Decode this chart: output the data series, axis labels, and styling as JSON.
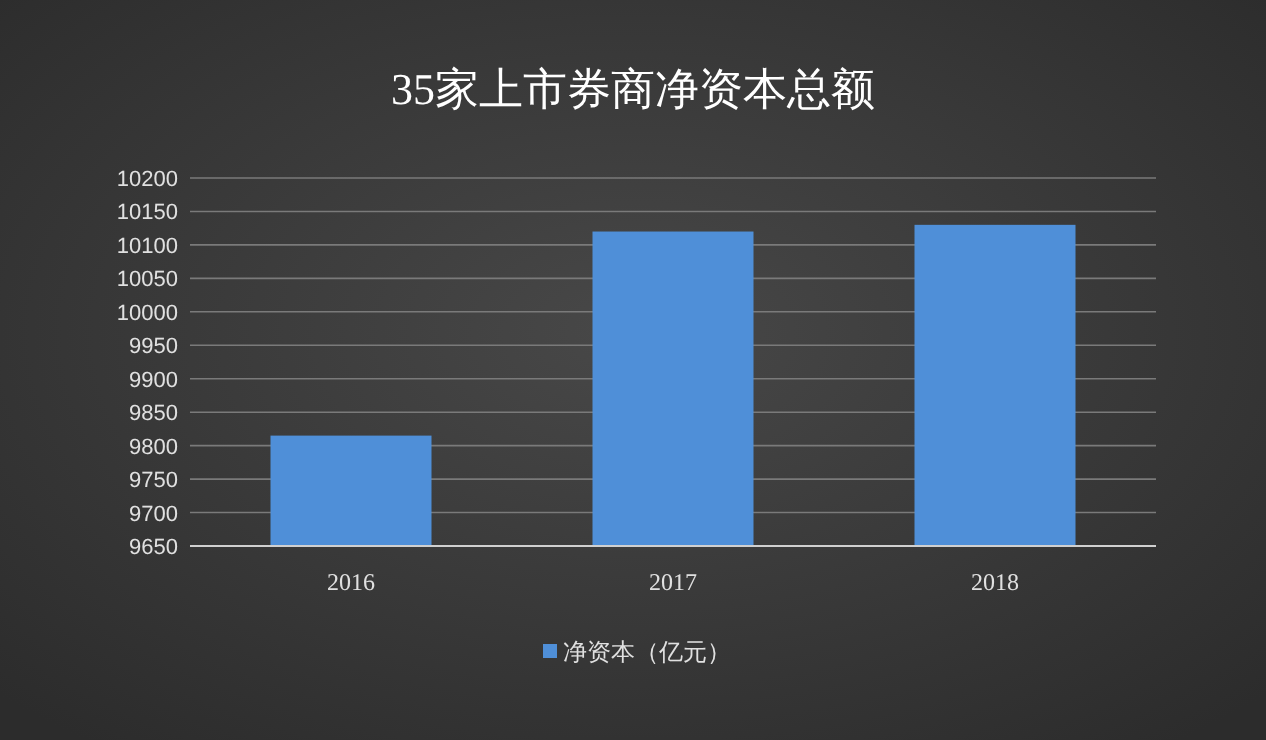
{
  "chart_data": {
    "type": "bar",
    "title": "35家上市券商净资本总额",
    "categories": [
      "2016",
      "2017",
      "2018"
    ],
    "series": [
      {
        "name": "净资本（亿元）",
        "color": "#4f8fd8",
        "values": [
          9815,
          10120,
          10130
        ]
      }
    ],
    "ylim": [
      9650,
      10200
    ],
    "yticks": [
      9650,
      9700,
      9750,
      9800,
      9850,
      9900,
      9950,
      10000,
      10050,
      10100,
      10150,
      10200
    ],
    "grid": "y",
    "legend": "bottom"
  }
}
